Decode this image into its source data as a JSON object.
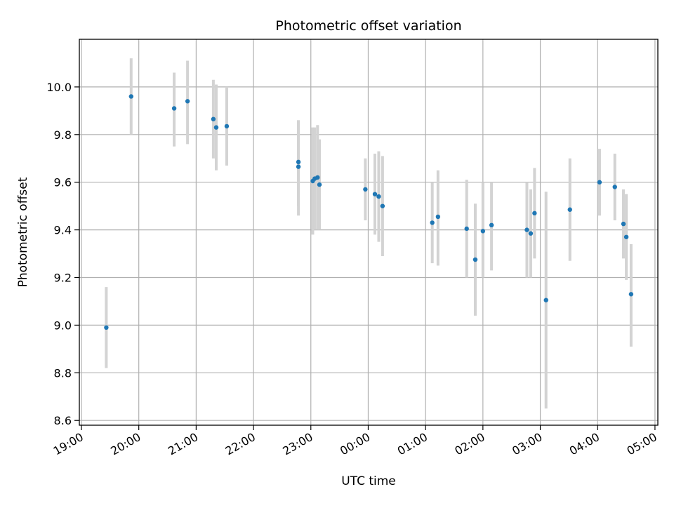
{
  "chart_data": {
    "type": "scatter",
    "title": "Photometric offset variation",
    "xlabel": "UTC time",
    "ylabel": "Photometric offset",
    "xlim": [
      "19:00",
      "05:03"
    ],
    "ylim": [
      8.58,
      10.2
    ],
    "grid": true,
    "x_ticks": [
      "19:00",
      "20:00",
      "21:00",
      "22:00",
      "23:00",
      "00:00",
      "01:00",
      "02:00",
      "03:00",
      "04:00",
      "05:00"
    ],
    "y_ticks": [
      "8.6",
      "8.8",
      "9.0",
      "9.2",
      "9.4",
      "9.6",
      "9.8",
      "10.0"
    ],
    "point_color": "#1f77b4",
    "errorbar_color": "#d3d3d3",
    "points": [
      {
        "t": "19:26",
        "y": 8.99,
        "lo": 8.82,
        "hi": 9.16
      },
      {
        "t": "19:52",
        "y": 9.96,
        "lo": 9.8,
        "hi": 10.12
      },
      {
        "t": "20:37",
        "y": 9.91,
        "lo": 9.75,
        "hi": 10.06
      },
      {
        "t": "20:51",
        "y": 9.94,
        "lo": 9.76,
        "hi": 10.11
      },
      {
        "t": "21:18",
        "y": 9.865,
        "lo": 9.7,
        "hi": 10.03
      },
      {
        "t": "21:21",
        "y": 9.83,
        "lo": 9.65,
        "hi": 10.01
      },
      {
        "t": "21:32",
        "y": 9.835,
        "lo": 9.67,
        "hi": 10.0
      },
      {
        "t": "22:47",
        "y": 9.685,
        "lo": 9.5,
        "hi": 9.86
      },
      {
        "t": "22:47",
        "y": 9.665,
        "lo": 9.46,
        "hi": 9.86
      },
      {
        "t": "23:02",
        "y": 9.605,
        "lo": 9.38,
        "hi": 9.83
      },
      {
        "t": "23:04",
        "y": 9.615,
        "lo": 9.4,
        "hi": 9.83
      },
      {
        "t": "23:07",
        "y": 9.62,
        "lo": 9.4,
        "hi": 9.84
      },
      {
        "t": "23:09",
        "y": 9.59,
        "lo": 9.4,
        "hi": 9.78
      },
      {
        "t": "23:57",
        "y": 9.57,
        "lo": 9.44,
        "hi": 9.7
      },
      {
        "t": "00:07",
        "y": 9.55,
        "lo": 9.38,
        "hi": 9.72
      },
      {
        "t": "00:11",
        "y": 9.54,
        "lo": 9.35,
        "hi": 9.73
      },
      {
        "t": "00:15",
        "y": 9.5,
        "lo": 9.29,
        "hi": 9.71
      },
      {
        "t": "01:07",
        "y": 9.43,
        "lo": 9.26,
        "hi": 9.6
      },
      {
        "t": "01:13",
        "y": 9.455,
        "lo": 9.25,
        "hi": 9.65
      },
      {
        "t": "01:43",
        "y": 9.405,
        "lo": 9.2,
        "hi": 9.61
      },
      {
        "t": "01:52",
        "y": 9.275,
        "lo": 9.04,
        "hi": 9.51
      },
      {
        "t": "02:00",
        "y": 9.395,
        "lo": 9.2,
        "hi": 9.6
      },
      {
        "t": "02:09",
        "y": 9.42,
        "lo": 9.23,
        "hi": 9.6
      },
      {
        "t": "02:46",
        "y": 9.4,
        "lo": 9.2,
        "hi": 9.6
      },
      {
        "t": "02:50",
        "y": 9.385,
        "lo": 9.2,
        "hi": 9.57
      },
      {
        "t": "02:54",
        "y": 9.47,
        "lo": 9.28,
        "hi": 9.66
      },
      {
        "t": "03:06",
        "y": 9.105,
        "lo": 8.65,
        "hi": 9.56
      },
      {
        "t": "03:31",
        "y": 9.485,
        "lo": 9.27,
        "hi": 9.7
      },
      {
        "t": "04:02",
        "y": 9.6,
        "lo": 9.46,
        "hi": 9.74
      },
      {
        "t": "04:18",
        "y": 9.58,
        "lo": 9.44,
        "hi": 9.72
      },
      {
        "t": "04:27",
        "y": 9.425,
        "lo": 9.28,
        "hi": 9.57
      },
      {
        "t": "04:30",
        "y": 9.37,
        "lo": 9.19,
        "hi": 9.55
      },
      {
        "t": "04:35",
        "y": 9.13,
        "lo": 8.91,
        "hi": 9.34
      }
    ]
  }
}
